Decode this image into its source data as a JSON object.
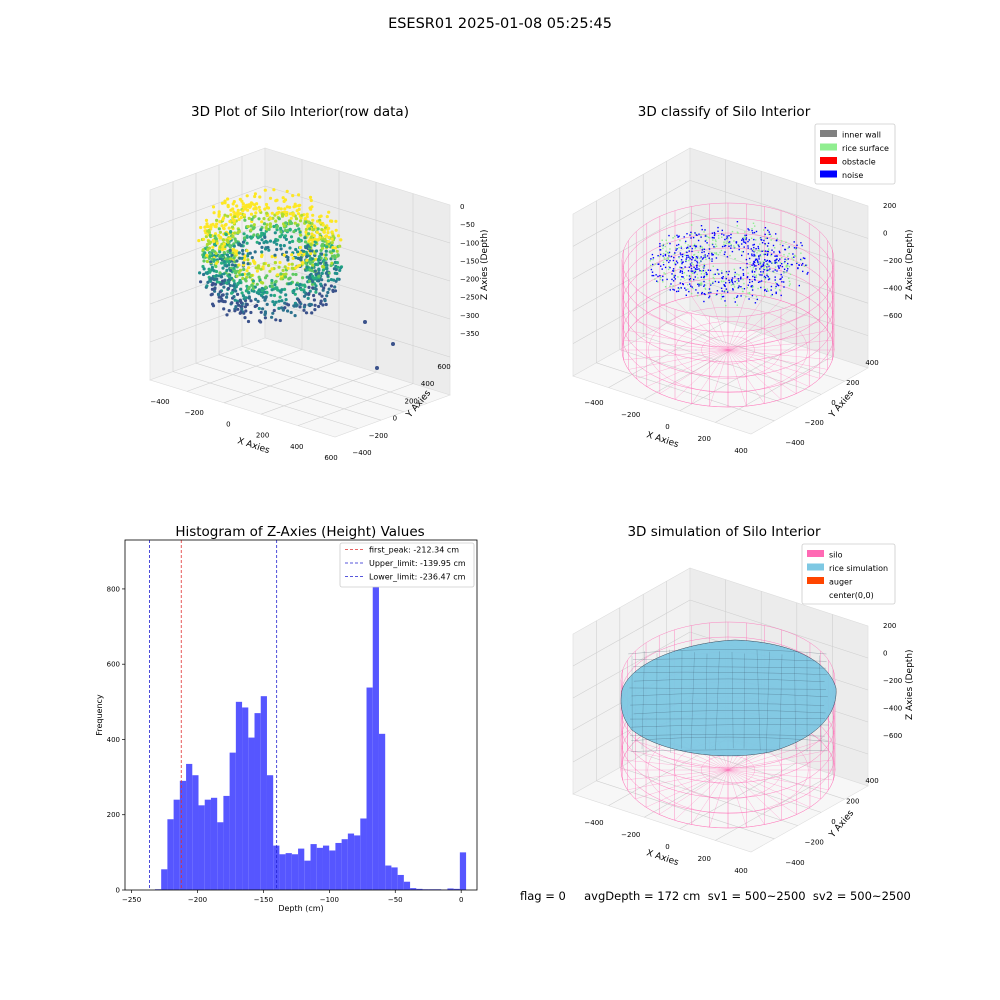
{
  "suptitle": "ESESR01 2025-01-08 05:25:45",
  "status_line": "flag = 0     avgDepth = 172 cm  sv1 = 500~2500  sv2 = 500~2500",
  "colors": {
    "hist_bar": "#4d4dff",
    "first_peak_line": "#e03030",
    "limit_line": "#2020d0",
    "silo_wire": "#ff69b4",
    "inner_wall": "#808080",
    "rice_surface": "#90ee90",
    "obstacle": "#ff0000",
    "noise": "#0000ff",
    "rice_simulation": "#7ec8e3",
    "auger": "#ff4500"
  },
  "chart_data": [
    {
      "type": "scatter",
      "title": "3D Plot of Silo Interior(row data)",
      "xlabel": "X Axies",
      "ylabel": "Y Axies",
      "zlabel": "Z Axies (Depth)",
      "x_ticks": [
        "−400",
        "−200",
        "0",
        "200",
        "400",
        "600"
      ],
      "y_ticks": [
        "−400",
        "−200",
        "0",
        "200",
        "400",
        "600"
      ],
      "z_ticks": [
        "0",
        "−50",
        "−100",
        "−150",
        "−200",
        "−250",
        "−300",
        "−350"
      ],
      "zlim": [
        -350,
        0
      ],
      "colormap": "viridis"
    },
    {
      "type": "scatter",
      "title": "3D classify of Silo Interior",
      "xlabel": "X Axies",
      "ylabel": "Y Axies",
      "zlabel": "Z Axies (Depth)",
      "x_ticks": [
        "−400",
        "−200",
        "0",
        "200",
        "400"
      ],
      "y_ticks": [
        "−400",
        "−200",
        "0",
        "200",
        "400"
      ],
      "z_ticks": [
        "200",
        "0",
        "−200",
        "−400",
        "−600"
      ],
      "legend": [
        {
          "label": "inner wall",
          "color": "#808080"
        },
        {
          "label": "rice surface",
          "color": "#90ee90"
        },
        {
          "label": "obstacle",
          "color": "#ff0000"
        },
        {
          "label": "noise",
          "color": "#0000ff"
        }
      ],
      "legend_position": "top-right"
    },
    {
      "type": "bar",
      "title": "Histogram of Z-Axies (Height) Values",
      "xlabel": "Depth (cm)",
      "ylabel": "Frequency",
      "xlim": [
        -255,
        12
      ],
      "ylim": [
        0,
        930
      ],
      "x_ticks": [
        -250,
        -200,
        -150,
        -100,
        -50,
        0
      ],
      "y_ticks": [
        0,
        200,
        400,
        600,
        800
      ],
      "bin_start": -237,
      "bin_width": 4.72,
      "values": [
        0,
        2,
        55,
        188,
        240,
        290,
        335,
        305,
        225,
        240,
        245,
        180,
        250,
        365,
        500,
        485,
        405,
        470,
        515,
        305,
        118,
        95,
        98,
        95,
        110,
        78,
        122,
        112,
        118,
        105,
        125,
        135,
        150,
        145,
        190,
        538,
        870,
        415,
        65,
        60,
        40,
        22,
        5,
        3,
        2,
        2,
        2,
        1,
        4,
        3,
        100
      ],
      "vlines": [
        {
          "label": "first_peak: -212.34 cm",
          "x": -212.34,
          "color": "#e03030"
        },
        {
          "label": "Upper_limit: -139.95 cm",
          "x": -139.95,
          "color": "#2020d0"
        },
        {
          "label": "Lower_limit: -236.47 cm",
          "x": -236.47,
          "color": "#2020d0"
        }
      ],
      "legend_position": "top-right"
    },
    {
      "type": "area",
      "title": "3D simulation of Silo Interior",
      "xlabel": "X Axies",
      "ylabel": "Y Axies",
      "zlabel": "Z Axies (Depth)",
      "x_ticks": [
        "−400",
        "−200",
        "0",
        "200",
        "400"
      ],
      "y_ticks": [
        "−400",
        "−200",
        "0",
        "200",
        "400"
      ],
      "z_ticks": [
        "200",
        "0",
        "−200",
        "−400",
        "−600"
      ],
      "legend": [
        {
          "label": "silo",
          "color": "#ff69b4"
        },
        {
          "label": "rice simulation",
          "color": "#7ec8e3"
        },
        {
          "label": "auger",
          "color": "#ff4500"
        },
        {
          "label": "center(0,0)",
          "color": "#ffffff"
        }
      ],
      "legend_position": "top-right"
    }
  ]
}
